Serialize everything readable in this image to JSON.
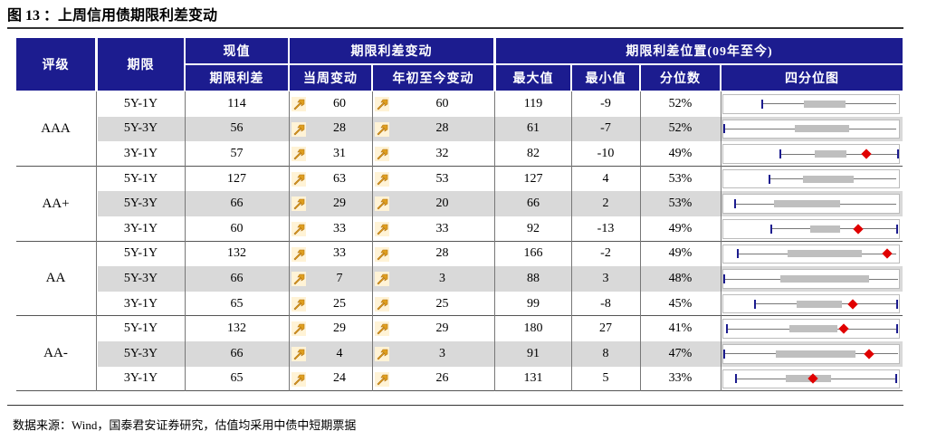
{
  "title": "图 13 ：上周信用债期限利差变动",
  "header": {
    "rating": "评级",
    "term": "期限",
    "current_group": "现值",
    "current": "期限利差",
    "change_group": "期限利差变动",
    "weekly": "当周变动",
    "ytd": "年初至今变动",
    "position_group": "期限利差位置(09年至今)",
    "max": "最大值",
    "min": "最小值",
    "percentile": "分位数",
    "quartile": "四分位图"
  },
  "groups": [
    {
      "rating": "AAA",
      "rows": [
        {
          "term": "5Y-1Y",
          "current": 114,
          "weekly": 60,
          "ytd": 60,
          "max": 119,
          "min": -9,
          "percentile": "52%"
        },
        {
          "term": "5Y-3Y",
          "current": 56,
          "weekly": 28,
          "ytd": 28,
          "max": 61,
          "min": -7,
          "percentile": "52%"
        },
        {
          "term": "3Y-1Y",
          "current": 57,
          "weekly": 31,
          "ytd": 32,
          "max": 82,
          "min": -10,
          "percentile": "49%"
        }
      ]
    },
    {
      "rating": "AA+",
      "rows": [
        {
          "term": "5Y-1Y",
          "current": 127,
          "weekly": 63,
          "ytd": 53,
          "max": 127,
          "min": 4,
          "percentile": "53%"
        },
        {
          "term": "5Y-3Y",
          "current": 66,
          "weekly": 29,
          "ytd": 20,
          "max": 66,
          "min": 2,
          "percentile": "53%"
        },
        {
          "term": "3Y-1Y",
          "current": 60,
          "weekly": 33,
          "ytd": 33,
          "max": 92,
          "min": -13,
          "percentile": "49%"
        }
      ]
    },
    {
      "rating": "AA",
      "rows": [
        {
          "term": "5Y-1Y",
          "current": 132,
          "weekly": 33,
          "ytd": 28,
          "max": 166,
          "min": -2,
          "percentile": "49%"
        },
        {
          "term": "5Y-3Y",
          "current": 66,
          "weekly": 7,
          "ytd": 3,
          "max": 88,
          "min": 3,
          "percentile": "48%"
        },
        {
          "term": "3Y-1Y",
          "current": 65,
          "weekly": 25,
          "ytd": 25,
          "max": 99,
          "min": -8,
          "percentile": "45%"
        }
      ]
    },
    {
      "rating": "AA-",
      "rows": [
        {
          "term": "5Y-1Y",
          "current": 132,
          "weekly": 29,
          "ytd": 29,
          "max": 180,
          "min": 27,
          "percentile": "41%"
        },
        {
          "term": "5Y-3Y",
          "current": 66,
          "weekly": 4,
          "ytd": 3,
          "max": 91,
          "min": 8,
          "percentile": "47%"
        },
        {
          "term": "3Y-1Y",
          "current": 65,
          "weekly": 24,
          "ytd": 26,
          "max": 131,
          "min": 5,
          "percentile": "33%"
        }
      ]
    }
  ],
  "source": "数据来源：Wind，国泰君安证券研究，估值均采用中债中短期票据"
}
